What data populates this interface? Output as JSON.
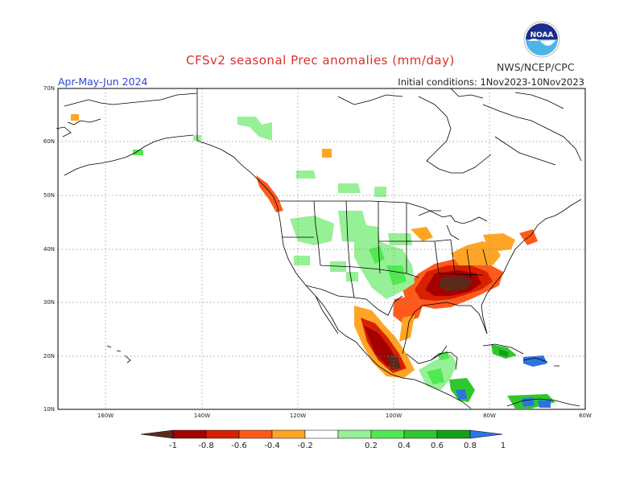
{
  "header": {
    "title": "CFSv2 seasonal Prec anomalies (mm/day)",
    "period": "Apr-May-Jun 2024",
    "initial_conditions": "Initial conditions: 1Nov2023-10Nov2023",
    "agency": "NWS/NCEP/CPC",
    "logo_text": "NOAA"
  },
  "map": {
    "lat_labels": [
      "70N",
      "60N",
      "50N",
      "40N",
      "30N",
      "20N",
      "10N"
    ],
    "lon_labels": [
      "160W",
      "140W",
      "120W",
      "100W",
      "80W",
      "60W"
    ]
  },
  "colorbar": {
    "labels": [
      "-1",
      "-0.8",
      "-0.6",
      "-0.4",
      "-0.2",
      "0.2",
      "0.4",
      "0.6",
      "0.8",
      "1"
    ],
    "colors": [
      "#5b2a1a",
      "#a40000",
      "#d82000",
      "#ff5a1c",
      "#ffa526",
      "#ffffff",
      "#96f096",
      "#52e852",
      "#2ec82e",
      "#14a014",
      "#2c74e0"
    ]
  },
  "colors": {
    "dry_deep": "#5b2a1a",
    "dry_strong": "#a40000",
    "dry_mid": "#d82000",
    "dry_light": "#ff5a1c",
    "dry_faint": "#ffa526",
    "wet_faint": "#96f096",
    "wet_light": "#52e852",
    "wet_mid": "#2ec82e",
    "wet_strong": "#14a014",
    "wet_max": "#2c74e0"
  }
}
